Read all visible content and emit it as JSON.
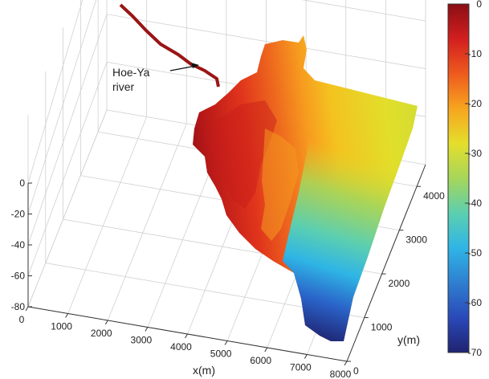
{
  "chart_data": {
    "type": "surface",
    "annotation": {
      "line1": "Hoe-Ya",
      "line2": "river"
    },
    "axes": {
      "x": {
        "label": "x(m)",
        "ticks": [
          0,
          1000,
          2000,
          3000,
          4000,
          5000,
          6000,
          7000,
          8000
        ],
        "range": [
          0,
          8000
        ]
      },
      "y": {
        "label": "y(m)",
        "ticks": [
          0,
          1000,
          2000,
          3000,
          4000
        ],
        "range": [
          0,
          4500
        ]
      },
      "z": {
        "label": "",
        "ticks": [
          0,
          -20,
          -40,
          -60,
          -80
        ],
        "range": [
          -80,
          0
        ]
      }
    },
    "colorbar": {
      "range": [
        -70,
        0
      ],
      "ticks": [
        0,
        -10,
        -20,
        -30,
        -40,
        -50,
        -60,
        -70
      ],
      "colormap": "jet",
      "stops": [
        "#1f2370",
        "#2a49b8",
        "#2f7fd0",
        "#2fb5e6",
        "#5ccfb0",
        "#a6d65a",
        "#e5de2b",
        "#f7a51f",
        "#ee5a1e",
        "#d21f1f",
        "#8a0e14"
      ]
    },
    "grid": true
  },
  "colors": {
    "river": "#9a1515",
    "grid": "#d0d0d0",
    "axis": "#333333"
  }
}
